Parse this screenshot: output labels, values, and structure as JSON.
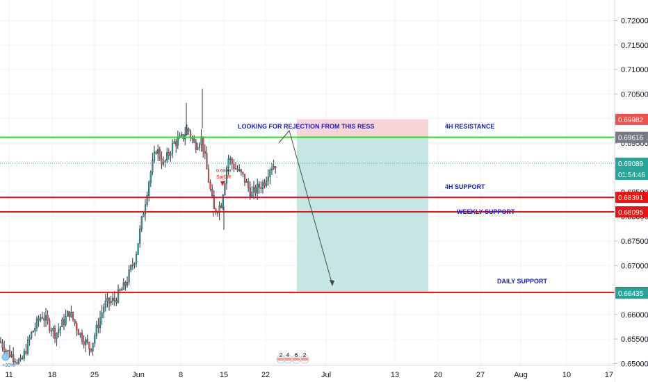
{
  "chart_data": {
    "type": "candlestick",
    "y_ticks": [
      "0.72000",
      "0.71500",
      "0.71000",
      "0.70500",
      "0.70000",
      "0.69500",
      "0.69000",
      "0.68500",
      "0.68000",
      "0.67500",
      "0.67000",
      "0.66500",
      "0.66000",
      "0.65500",
      "0.65000"
    ],
    "ylim": [
      0.6492,
      0.7232
    ],
    "x_ticks": [
      "11",
      "18",
      "25",
      "Jun",
      "8",
      "15",
      "22",
      "Jul",
      "13",
      "20",
      "27",
      "Aug",
      "10",
      "17"
    ],
    "levels": [
      {
        "name": "4H RESISTANCE",
        "value": 0.69617,
        "color": "#22dd22",
        "label_value": "0.69617"
      },
      {
        "name": "4H SUPPORT",
        "value": 0.68391,
        "color": "#ee1111",
        "label_value": "0.68391"
      },
      {
        "name": "WEEKLY SUPPORT",
        "value": 0.68095,
        "color": "#ee1111",
        "label_value": "0.68095"
      },
      {
        "name": "DAILY SUPPORT",
        "value": 0.6645,
        "color": "#ee1111",
        "label_value": "0.66450"
      }
    ],
    "price_tags": [
      {
        "value": 0.69982,
        "text": "0.69982",
        "color": "#ef5350"
      },
      {
        "value": 0.69616,
        "text": "0.69616",
        "color": "#787b86"
      },
      {
        "value": 0.69089,
        "text": "0.69089",
        "color": "#26a69a"
      },
      {
        "value": 0.66435,
        "text": "0.66435",
        "color": "#26a69a"
      }
    ],
    "countdown": "01:54:46",
    "current_price": 0.69089,
    "annotation": "LOOKING FOR REJECTION FROM THIS RESS",
    "projection": {
      "stop_value": 0.69982,
      "entry_value": 0.69617,
      "target_value": 0.6645
    },
    "marker_text": [
      "0.6989",
      "SarDR"
    ],
    "event_badges": [
      "2",
      "4",
      "6",
      "2"
    ],
    "left_badge": "+30%",
    "colors": {
      "up": "#26a69a",
      "down": "#ef5350",
      "candle": "#2a2e39",
      "grid": "#f0f3fa"
    }
  }
}
